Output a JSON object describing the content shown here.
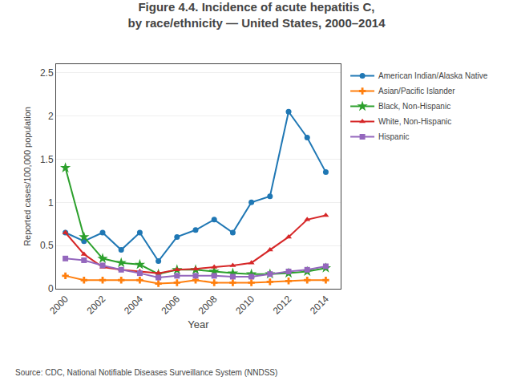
{
  "chart_data": {
    "type": "line",
    "title": "Figure 4.4. Incidence of acute hepatitis C,",
    "subtitle": "by race/ethnicity — United States, 2000–2014",
    "xlabel": "Year",
    "ylabel": "Reported cases/100,000 population",
    "annotations": [
      "Source: CDC, National Notifiable Diseases Surveillance System (NNDSS)"
    ],
    "x": [
      2000,
      2001,
      2002,
      2003,
      2004,
      2005,
      2006,
      2007,
      2008,
      2009,
      2010,
      2011,
      2012,
      2013,
      2014
    ],
    "series": [
      {
        "name": "American Indian/Alaska Native",
        "marker": "circle",
        "values": [
          0.65,
          0.55,
          0.65,
          0.45,
          0.65,
          0.32,
          0.6,
          0.68,
          0.8,
          0.65,
          1.0,
          1.07,
          2.05,
          1.75,
          1.35
        ]
      },
      {
        "name": "Asian/Pacific Islander",
        "marker": "cross",
        "values": [
          0.15,
          0.1,
          0.1,
          0.1,
          0.1,
          0.06,
          0.07,
          0.1,
          0.07,
          0.07,
          0.07,
          0.08,
          0.09,
          0.1,
          0.1
        ]
      },
      {
        "name": "Black, Non-Hispanic",
        "marker": "star",
        "values": [
          1.4,
          0.6,
          0.35,
          0.3,
          0.28,
          0.17,
          0.22,
          0.22,
          0.2,
          0.18,
          0.17,
          0.17,
          0.18,
          0.2,
          0.24
        ]
      },
      {
        "name": "White, Non-Hispanic",
        "marker": "triangle-up",
        "values": [
          0.65,
          0.4,
          0.25,
          0.22,
          0.2,
          0.18,
          0.22,
          0.23,
          0.25,
          0.27,
          0.3,
          0.45,
          0.6,
          0.8,
          0.85
        ]
      },
      {
        "name": "Hispanic",
        "marker": "square",
        "values": [
          0.35,
          0.33,
          0.27,
          0.22,
          0.18,
          0.13,
          0.15,
          0.15,
          0.15,
          0.14,
          0.14,
          0.17,
          0.2,
          0.22,
          0.26
        ]
      }
    ],
    "xlim": [
      1999.5,
      2014.8
    ],
    "xticks": [
      2000,
      2002,
      2004,
      2006,
      2008,
      2010,
      2012,
      2014
    ],
    "ylim": [
      0,
      2.6
    ],
    "yticks": [
      0,
      0.5,
      1,
      1.5,
      2,
      2.5
    ],
    "grid": true,
    "legend": "upper right"
  }
}
